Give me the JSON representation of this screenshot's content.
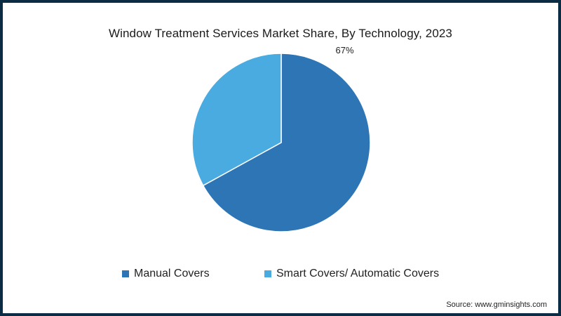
{
  "chart_data": {
    "type": "pie",
    "title": "Window Treatment Services Market Share, By Technology, 2023",
    "slices": [
      {
        "label": "Manual Covers",
        "value": 67,
        "data_label": "67%",
        "color": "#2e75b6"
      },
      {
        "label": "Smart Covers/ Automatic Covers",
        "value": 33,
        "data_label": "",
        "color": "#4aabe0"
      }
    ],
    "legend_position": "bottom",
    "source": "Source: www.gminsights.com"
  },
  "colors": {
    "frame": "#0b2c42",
    "slice_border": "#ffffff"
  }
}
